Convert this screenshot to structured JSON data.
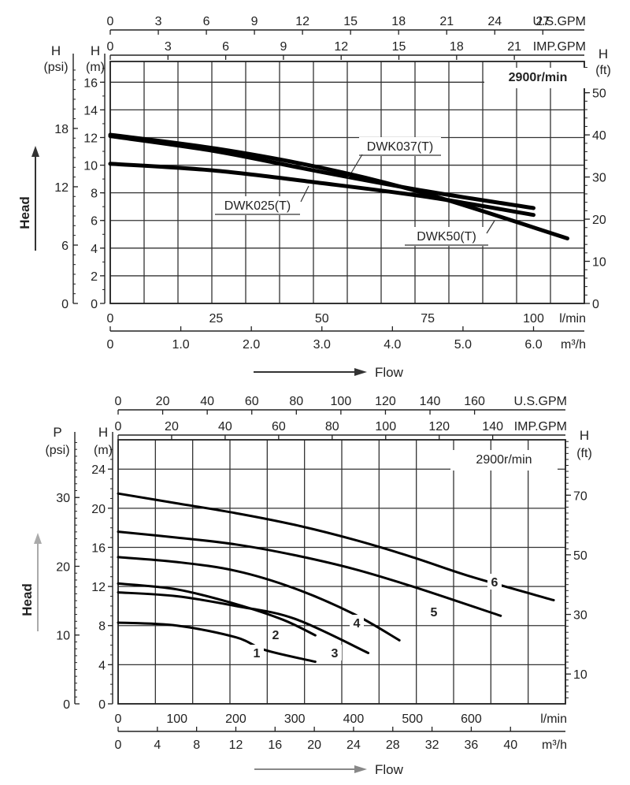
{
  "chart_data": [
    {
      "type": "line",
      "speed_label": "2900r/min",
      "xlabel": "Flow",
      "ylabel": "Head",
      "axes": {
        "top_usgpm": {
          "unit": "U.S.GPM",
          "ticks": [
            "0",
            "3",
            "6",
            "9",
            "12",
            "15",
            "18",
            "21",
            "24",
            "27"
          ]
        },
        "top_impgpm": {
          "unit": "IMP.GPM",
          "ticks": [
            "0",
            "3",
            "6",
            "9",
            "12",
            "15",
            "18",
            "21"
          ]
        },
        "bottom_lmin": {
          "unit": "l/min",
          "ticks": [
            "0",
            "25",
            "50",
            "75",
            "100"
          ]
        },
        "bottom_m3h": {
          "unit": "m³/h",
          "ticks": [
            "0",
            "1.0",
            "2.0",
            "3.0",
            "4.0",
            "5.0",
            "6.0"
          ]
        },
        "left_m": {
          "unit_header": "H",
          "unit": "(m)",
          "ticks": [
            "0",
            "2",
            "4",
            "6",
            "8",
            "10",
            "12",
            "14",
            "16"
          ]
        },
        "left_psi": {
          "unit_header": "H",
          "unit": "(psi)",
          "ticks": [
            "0",
            "6",
            "12",
            "18"
          ]
        },
        "right_ft": {
          "unit_header": "H",
          "unit": "(ft)",
          "ticks": [
            "0",
            "10",
            "20",
            "30",
            "40",
            "50"
          ]
        }
      },
      "x_unit": "l/min",
      "y_unit": "m",
      "xlim": [
        0,
        112
      ],
      "ylim": [
        0,
        17.5
      ],
      "series": [
        {
          "name": "DWK037(T)",
          "x": [
            0,
            25,
            50,
            75,
            100
          ],
          "y": [
            12.1,
            11.0,
            9.5,
            8.1,
            6.9
          ]
        },
        {
          "name": "DWK025(T)",
          "x": [
            0,
            25,
            50,
            75,
            100
          ],
          "y": [
            10.1,
            9.6,
            8.7,
            7.7,
            6.4
          ]
        },
        {
          "name": "DWK50(T)",
          "x": [
            0,
            25,
            50,
            75,
            108
          ],
          "y": [
            12.2,
            11.2,
            9.8,
            7.9,
            4.7
          ]
        }
      ]
    },
    {
      "type": "line",
      "speed_label": "2900r/min",
      "xlabel": "Flow",
      "ylabel": "Head",
      "axes": {
        "top_usgpm": {
          "unit": "U.S.GPM",
          "ticks": [
            "0",
            "20",
            "40",
            "60",
            "80",
            "100",
            "120",
            "140",
            "160"
          ]
        },
        "top_impgpm": {
          "unit": "IMP.GPM",
          "ticks": [
            "0",
            "20",
            "40",
            "60",
            "80",
            "100",
            "120",
            "140"
          ]
        },
        "bottom_lmin": {
          "unit": "l/min",
          "ticks": [
            "0",
            "100",
            "200",
            "300",
            "400",
            "500",
            "600"
          ]
        },
        "bottom_m3h": {
          "unit": "m³/h",
          "ticks": [
            "0",
            "4",
            "8",
            "12",
            "16",
            "20",
            "24",
            "28",
            "32",
            "36",
            "40"
          ]
        },
        "left_m": {
          "unit_header": "H",
          "unit": "(m)",
          "ticks": [
            "0",
            "4",
            "8",
            "12",
            "16",
            "20",
            "24"
          ]
        },
        "left_psi": {
          "unit_header": "P",
          "unit": "(psi)",
          "ticks": [
            "0",
            "10",
            "20",
            "30"
          ]
        },
        "right_ft": {
          "unit_header": "H",
          "unit": "(ft)",
          "ticks": [
            "10",
            "30",
            "50",
            "70"
          ]
        }
      },
      "x_unit": "l/min",
      "y_unit": "m",
      "xlim": [
        0,
        760
      ],
      "ylim": [
        0,
        27
      ],
      "series": [
        {
          "name": "1",
          "x": [
            0,
            100,
            200,
            250,
            335
          ],
          "y": [
            8.3,
            8.0,
            6.8,
            5.5,
            4.3
          ]
        },
        {
          "name": "2",
          "x": [
            0,
            100,
            200,
            280,
            335
          ],
          "y": [
            12.3,
            11.7,
            10.2,
            8.6,
            7.0
          ]
        },
        {
          "name": "3",
          "x": [
            0,
            100,
            200,
            300,
            425
          ],
          "y": [
            11.4,
            11.0,
            10.0,
            8.7,
            5.2
          ]
        },
        {
          "name": "4",
          "x": [
            0,
            100,
            200,
            300,
            400,
            478
          ],
          "y": [
            15.0,
            14.5,
            13.6,
            11.8,
            9.2,
            6.5
          ]
        },
        {
          "name": "5",
          "x": [
            0,
            100,
            200,
            300,
            400,
            500,
            650
          ],
          "y": [
            17.6,
            17.0,
            16.3,
            15.2,
            13.8,
            12.0,
            9.0
          ]
        },
        {
          "name": "6",
          "x": [
            0,
            100,
            200,
            300,
            400,
            500,
            600,
            740
          ],
          "y": [
            21.5,
            20.5,
            19.5,
            18.3,
            16.8,
            15.0,
            13.0,
            10.6
          ]
        }
      ]
    }
  ]
}
